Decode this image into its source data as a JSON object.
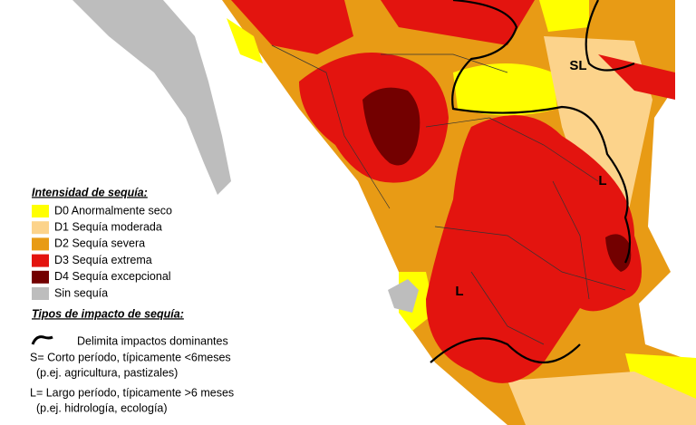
{
  "legend": {
    "title": "Intensidad de sequía:",
    "items": [
      {
        "label": "D0 Anormalmente seco",
        "color": "#ffff00"
      },
      {
        "label": "D1 Sequía moderada",
        "color": "#fcd38b"
      },
      {
        "label": "D2 Sequía severa",
        "color": "#e89b15"
      },
      {
        "label": "D3 Sequía extrema",
        "color": "#e3140f"
      },
      {
        "label": "D4 Sequía excepcional",
        "color": "#730000"
      },
      {
        "label": "Sin sequía",
        "color": "#bdbdbd"
      }
    ]
  },
  "impacts": {
    "title": "Tipos de impacto de sequía:",
    "items": [
      "Delimita impactos dominantes",
      "S= Corto período, típicamente <6meses",
      "(p.ej. agricultura, pastizales)",
      "L= Largo período, típicamente >6 meses",
      "(p.ej. hidrología, ecología)"
    ]
  },
  "map_labels": [
    "SL",
    "L",
    "L"
  ]
}
